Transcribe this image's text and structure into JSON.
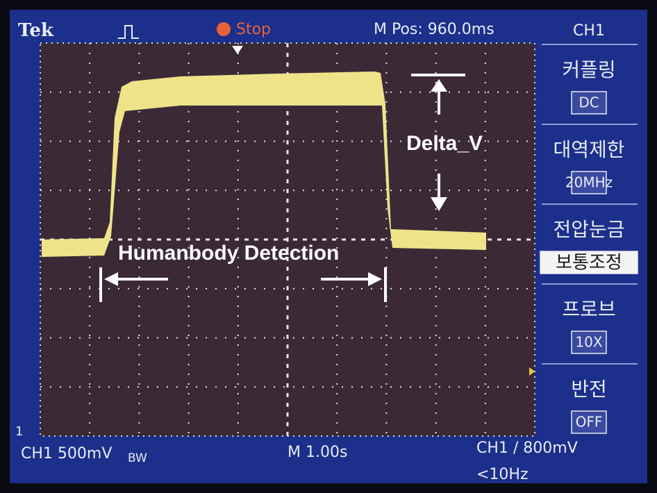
{
  "header": {
    "brand": "Tek",
    "status": "Stop",
    "position": "M Pos: 960.0ms"
  },
  "menu": {
    "title": "CH1",
    "items": [
      {
        "label": "커플링",
        "value": "DC"
      },
      {
        "label": "대역제한",
        "value": "20MHz"
      },
      {
        "label": "전압눈금",
        "value": "보통조정"
      },
      {
        "label": "프로브",
        "value": "10X"
      },
      {
        "label": "반전",
        "value": "OFF"
      }
    ]
  },
  "footer": {
    "channel": "CH1 500mV",
    "bandwidth": "BW",
    "timebase": "M 1.00s",
    "trigger": "CH1 / 800mV",
    "frequency": "<10Hz"
  },
  "annotations": {
    "delta": "Delta_V",
    "detection": "Humanbody Detection"
  },
  "markers": {
    "channel": "1"
  }
}
